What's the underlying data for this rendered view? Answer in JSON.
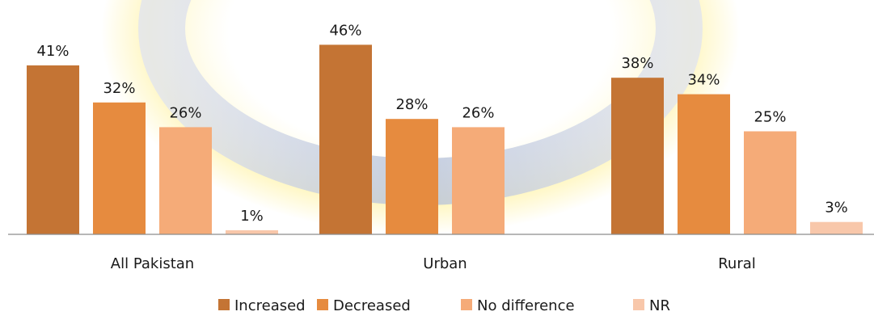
{
  "chart_data": {
    "type": "bar",
    "categories": [
      "All Pakistan",
      "Urban",
      "Rural"
    ],
    "series": [
      {
        "name": "Increased",
        "color": "#c47434",
        "values": [
          41,
          46,
          38
        ],
        "labels": [
          "41%",
          "46%",
          "38%"
        ]
      },
      {
        "name": "Decreased",
        "color": "#e68b3f",
        "values": [
          32,
          28,
          34
        ],
        "labels": [
          "32%",
          "28%",
          "34%"
        ]
      },
      {
        "name": "No difference",
        "color": "#f5ab78",
        "values": [
          26,
          26,
          25
        ],
        "labels": [
          "26%",
          "26%",
          "25%"
        ]
      },
      {
        "name": "NR",
        "color": "#f8c7aa",
        "values": [
          1,
          null,
          3
        ],
        "labels": [
          "1%",
          null,
          "3%"
        ]
      }
    ],
    "value_suffix": "%",
    "ylim": [
      0,
      50
    ],
    "grid": false,
    "legend": "bottom-center"
  }
}
